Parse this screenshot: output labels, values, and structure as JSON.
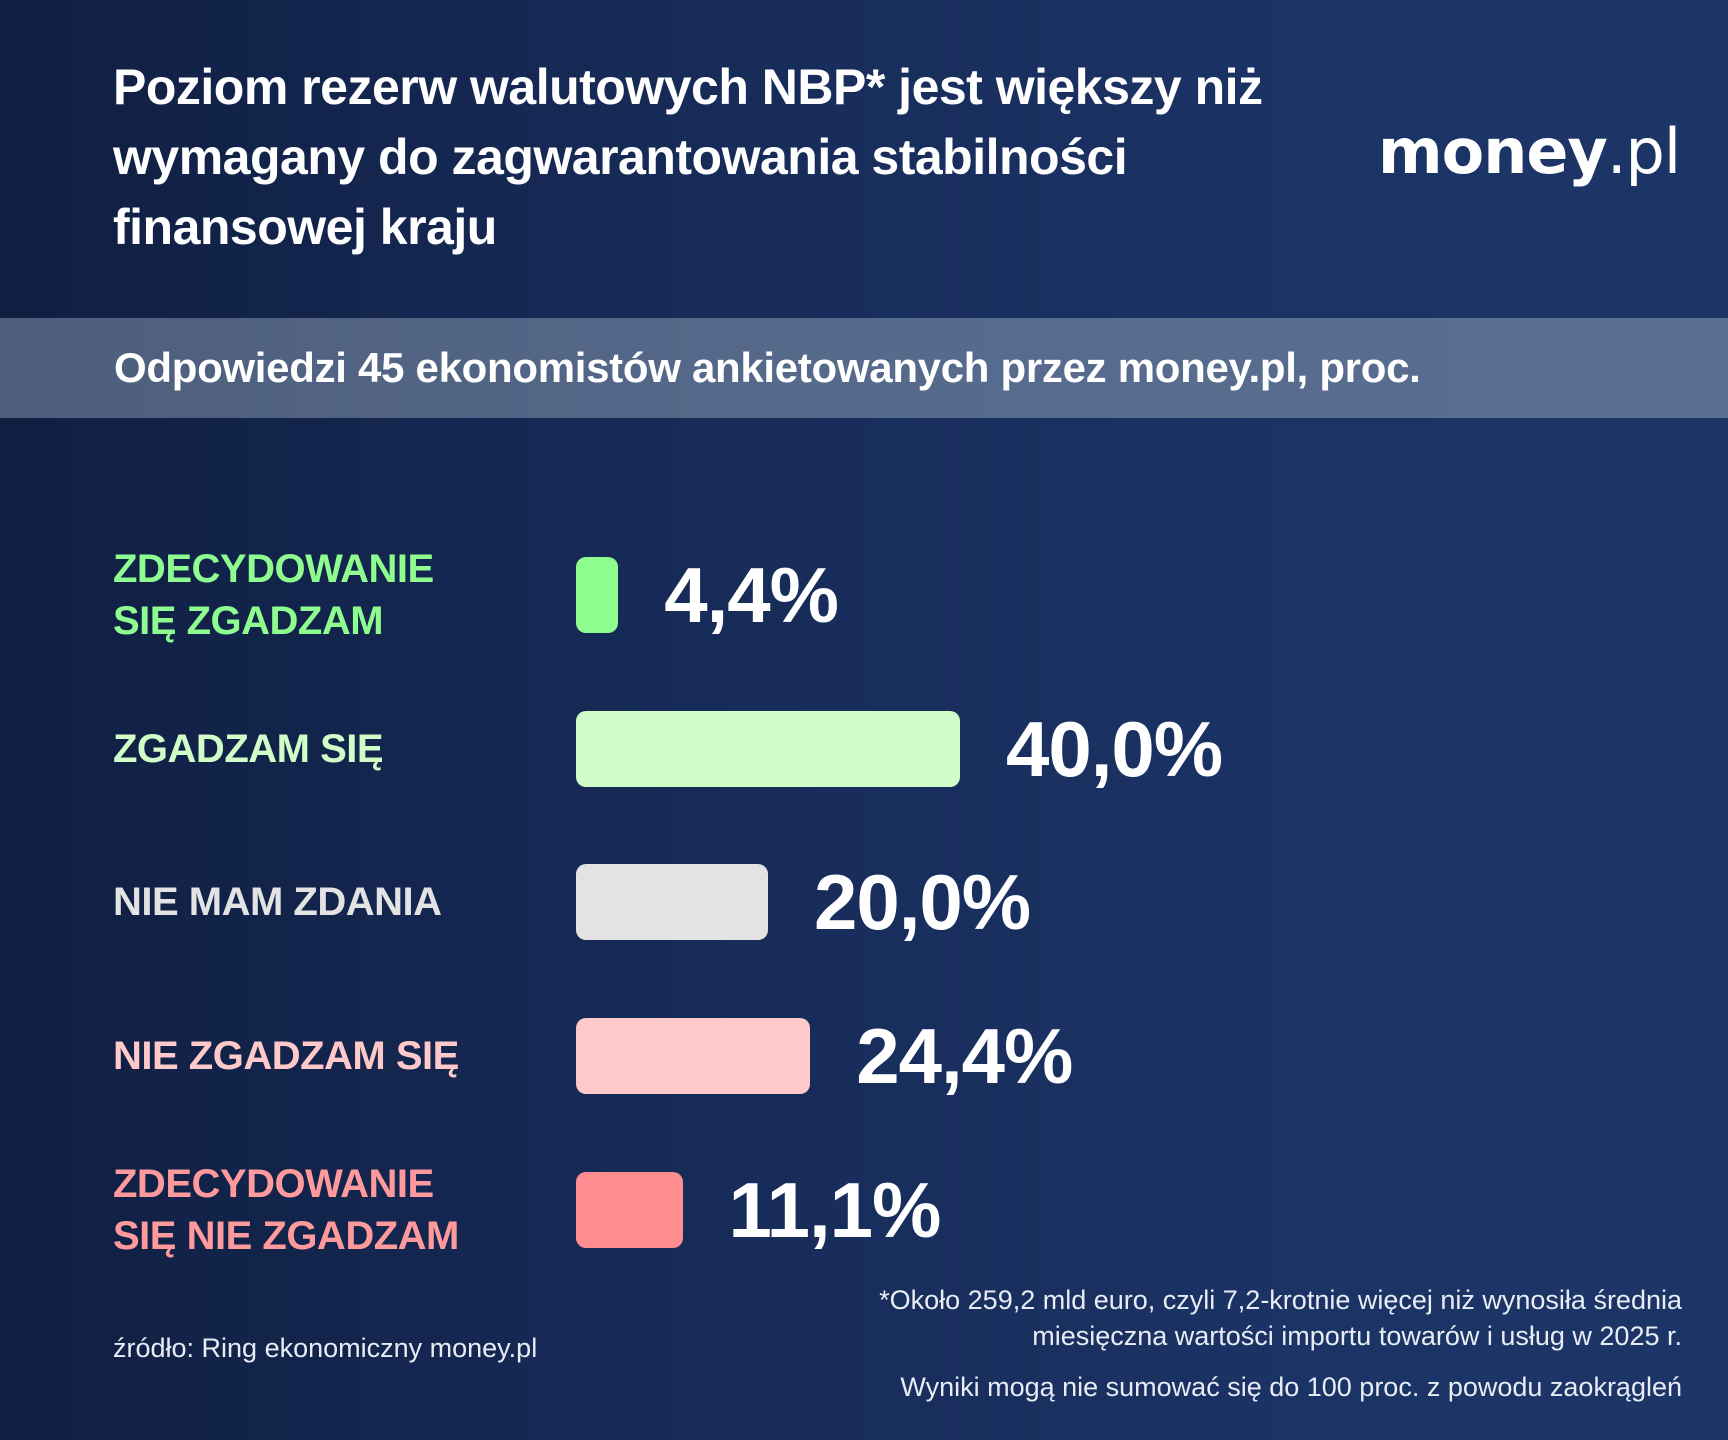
{
  "header": {
    "title": "Poziom rezerw walutowych NBP* jest większy niż wymagany do zagwarantowania stabilności finansowej kraju",
    "logo_main": "money",
    "logo_tld": ".pl"
  },
  "subtitle": "Odpowiedzi 45 ekonomistów ankietowanych przez money.pl, proc.",
  "colors": {
    "background": "#172b58",
    "subtitle_band": "#566a8c",
    "strongly_agree": "#8ffc8f",
    "agree": "#d1fdc9",
    "no_opinion": "#e3e3e3",
    "disagree": "#ffc8c9",
    "strongly_disagree": "#ff8c8f"
  },
  "rows": [
    {
      "label": "ZDECYDOWANIE\nSIĘ ZGADZAM",
      "value_text": "4,4%",
      "value": 4.4,
      "label_color": "#8ffc8f",
      "bar_color": "#8ffc8f"
    },
    {
      "label": "ZGADZAM SIĘ",
      "value_text": "40,0%",
      "value": 40.0,
      "label_color": "#d1fdc9",
      "bar_color": "#d1fdc9"
    },
    {
      "label": "NIE MAM ZDANIA",
      "value_text": "20,0%",
      "value": 20.0,
      "label_color": "#e3e3e3",
      "bar_color": "#e3e3e3"
    },
    {
      "label": "NIE ZGADZAM SIĘ",
      "value_text": "24,4%",
      "value": 24.4,
      "label_color": "#ffc8c9",
      "bar_color": "#ffc8c9"
    },
    {
      "label": "ZDECYDOWANIE\nSIĘ NIE ZGADZAM",
      "value_text": "11,1%",
      "value": 11.1,
      "label_color": "#ff9a9c",
      "bar_color": "#ff8c8f"
    }
  ],
  "footer": {
    "source": "źródło: Ring ekonomiczny money.pl",
    "note": "*Około 259,2 mld euro, czyli 7,2-krotnie więcej niż wynosiła średnia miesięczna wartości importu towarów i usług w 2025 r.",
    "rounding": "Wyniki mogą nie sumować się do 100 proc. z powodu zaokrągleń"
  },
  "chart_data": {
    "type": "bar",
    "orientation": "horizontal",
    "title": "Poziom rezerw walutowych NBP* jest większy niż wymagany do zagwarantowania stabilności finansowej kraju",
    "subtitle": "Odpowiedzi 45 ekonomistów ankietowanych przez money.pl, proc.",
    "categories": [
      "Zdecydowanie się zgadzam",
      "Zgadzam się",
      "Nie mam zdania",
      "Nie zgadzam się",
      "Zdecydowanie się nie zgadzam"
    ],
    "values": [
      4.4,
      40.0,
      20.0,
      24.4,
      11.1
    ],
    "value_labels": [
      "4,4%",
      "40,0%",
      "20,0%",
      "24,4%",
      "11,1%"
    ],
    "colors": [
      "#8ffc8f",
      "#d1fdc9",
      "#e3e3e3",
      "#ffc8c9",
      "#ff8c8f"
    ],
    "xlabel": "",
    "ylabel": "",
    "unit": "%",
    "grid": false,
    "legend": "none",
    "annotations": [
      "*Około 259,2 mld euro, czyli 7,2-krotnie więcej niż wynosiła średnia miesięczna wartości importu towarów i usług w 2025 r.",
      "Wyniki mogą nie sumować się do 100 proc. z powodu zaokrągleń",
      "źródło: Ring ekonomiczny money.pl"
    ]
  }
}
